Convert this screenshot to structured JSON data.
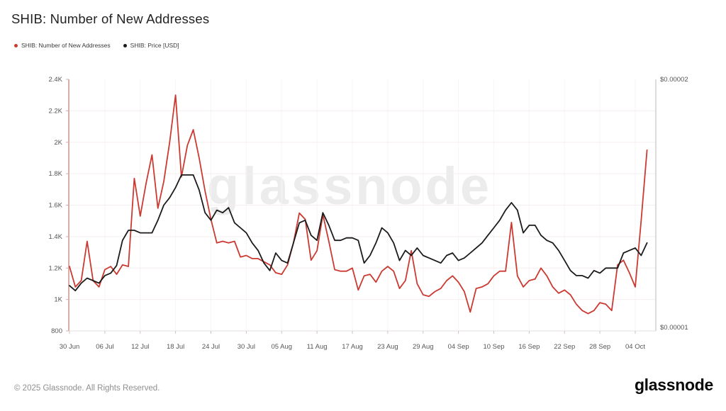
{
  "header": {
    "title": "SHIB: Number of New Addresses"
  },
  "legend": [
    {
      "label": "SHIB: Number of New Addresses",
      "color": "#cb3a32"
    },
    {
      "label": "SHIB: Price [USD]",
      "color": "#1b1b1b"
    }
  ],
  "watermark": "glassnode",
  "footer": {
    "copyright": "© 2025 Glassnode. All Rights Reserved.",
    "logo": "glassnode"
  },
  "colors": {
    "grid": "#f4efee",
    "grid_vertical": "#f7f5f4",
    "left_axis": "#d9aea8",
    "right_axis": "#b8b8b8",
    "bottom_axis": "#e6e0de",
    "x_tick": "#cac5c3",
    "axis_text": "#565656"
  },
  "chart_data": {
    "type": "line",
    "title": "SHIB: Number of New Addresses",
    "x_frequency": "daily",
    "x_start_label": "30 Jun",
    "x_end_label": "06 Oct",
    "x_ticks": [
      {
        "label": "30 Jun",
        "day": 0
      },
      {
        "label": "06 Jul",
        "day": 6
      },
      {
        "label": "12 Jul",
        "day": 12
      },
      {
        "label": "18 Jul",
        "day": 18
      },
      {
        "label": "24 Jul",
        "day": 24
      },
      {
        "label": "30 Jul",
        "day": 30
      },
      {
        "label": "05 Aug",
        "day": 36
      },
      {
        "label": "11 Aug",
        "day": 42
      },
      {
        "label": "17 Aug",
        "day": 48
      },
      {
        "label": "23 Aug",
        "day": 54
      },
      {
        "label": "29 Aug",
        "day": 60
      },
      {
        "label": "04 Sep",
        "day": 66
      },
      {
        "label": "10 Sep",
        "day": 72
      },
      {
        "label": "16 Sep",
        "day": 78
      },
      {
        "label": "22 Sep",
        "day": 84
      },
      {
        "label": "28 Sep",
        "day": 90
      },
      {
        "label": "04 Oct",
        "day": 96
      }
    ],
    "axes": {
      "left": {
        "range": [
          800,
          2400
        ],
        "tick_values": [
          2400,
          2200,
          2000,
          1800,
          1600,
          1400,
          1200,
          1000,
          800
        ],
        "tick_labels": [
          "2.4K",
          "2.2K",
          "2K",
          "1.8K",
          "1.6K",
          "1.4K",
          "1.2K",
          "1K",
          "800"
        ]
      },
      "right": {
        "range": [
          1e-05,
          2e-05
        ],
        "tick_values": [
          2e-05,
          1e-05
        ],
        "tick_labels": [
          "$0.00002",
          "$0.00001"
        ]
      }
    },
    "grid": "horizontal-and-faint-vertical",
    "legend_position": "top-left",
    "series": [
      {
        "name": "SHIB: Number of New Addresses",
        "axis": "left",
        "color": "#cb3a32",
        "values": [
          1210,
          1080,
          1120,
          1370,
          1120,
          1080,
          1190,
          1210,
          1160,
          1220,
          1210,
          1770,
          1530,
          1740,
          1920,
          1580,
          1750,
          2000,
          2300,
          1780,
          1980,
          2080,
          1900,
          1690,
          1510,
          1360,
          1370,
          1360,
          1370,
          1270,
          1280,
          1260,
          1260,
          1240,
          1220,
          1170,
          1160,
          1220,
          1360,
          1550,
          1510,
          1250,
          1310,
          1540,
          1370,
          1190,
          1180,
          1180,
          1200,
          1060,
          1150,
          1160,
          1110,
          1180,
          1210,
          1180,
          1070,
          1120,
          1310,
          1100,
          1030,
          1020,
          1050,
          1070,
          1120,
          1150,
          1110,
          1050,
          920,
          1070,
          1080,
          1100,
          1150,
          1180,
          1180,
          1490,
          1150,
          1080,
          1120,
          1130,
          1200,
          1150,
          1080,
          1040,
          1060,
          1030,
          970,
          930,
          910,
          930,
          980,
          970,
          930,
          1220,
          1250,
          1170,
          1080,
          1500,
          1950
        ]
      },
      {
        "name": "SHIB: Price [USD]",
        "axis": "right",
        "color": "#1b1b1b",
        "values": [
          1.18e-05,
          1.16e-05,
          1.19e-05,
          1.21e-05,
          1.2e-05,
          1.19e-05,
          1.22e-05,
          1.23e-05,
          1.26e-05,
          1.36e-05,
          1.4e-05,
          1.4e-05,
          1.39e-05,
          1.39e-05,
          1.39e-05,
          1.44e-05,
          1.5e-05,
          1.53e-05,
          1.57e-05,
          1.62e-05,
          1.62e-05,
          1.62e-05,
          1.56e-05,
          1.47e-05,
          1.44e-05,
          1.48e-05,
          1.47e-05,
          1.49e-05,
          1.43e-05,
          1.41e-05,
          1.39e-05,
          1.35e-05,
          1.32e-05,
          1.27e-05,
          1.24e-05,
          1.31e-05,
          1.28e-05,
          1.27e-05,
          1.35e-05,
          1.43e-05,
          1.44e-05,
          1.38e-05,
          1.36e-05,
          1.47e-05,
          1.42e-05,
          1.36e-05,
          1.36e-05,
          1.37e-05,
          1.37e-05,
          1.36e-05,
          1.27e-05,
          1.3e-05,
          1.35e-05,
          1.41e-05,
          1.39e-05,
          1.35e-05,
          1.28e-05,
          1.32e-05,
          1.3e-05,
          1.33e-05,
          1.3e-05,
          1.29e-05,
          1.28e-05,
          1.27e-05,
          1.3e-05,
          1.31e-05,
          1.28e-05,
          1.29e-05,
          1.31e-05,
          1.33e-05,
          1.35e-05,
          1.38e-05,
          1.41e-05,
          1.44e-05,
          1.48e-05,
          1.51e-05,
          1.48e-05,
          1.39e-05,
          1.42e-05,
          1.42e-05,
          1.38e-05,
          1.36e-05,
          1.35e-05,
          1.32e-05,
          1.28e-05,
          1.24e-05,
          1.22e-05,
          1.22e-05,
          1.21e-05,
          1.24e-05,
          1.23e-05,
          1.25e-05,
          1.25e-05,
          1.25e-05,
          1.31e-05,
          1.32e-05,
          1.33e-05,
          1.3e-05,
          1.35e-05
        ]
      }
    ]
  }
}
